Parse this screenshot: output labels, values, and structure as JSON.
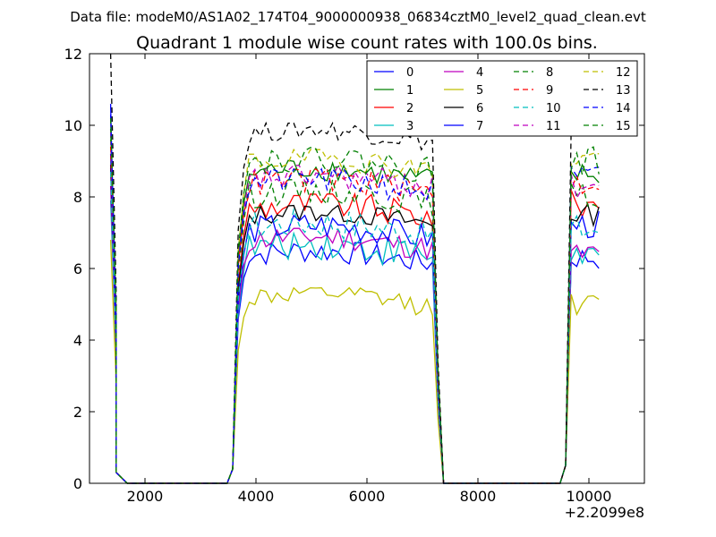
{
  "suptitle": "Data file: modeM0/AS1A02_174T04_9000000938_06834cztM0_level2_quad_clean.evt",
  "chart_data": {
    "type": "line",
    "title": "Quadrant 1 module wise count rates with 100.0s bins.",
    "xlabel": "",
    "ylabel": "",
    "x_offset_label": "+2.2099e8",
    "xlim": [
      1000,
      11000
    ],
    "ylim": [
      0,
      12
    ],
    "xticks": [
      2000,
      4000,
      6000,
      8000,
      10000
    ],
    "yticks": [
      0,
      2,
      4,
      6,
      8,
      10,
      12
    ],
    "grid": false,
    "legend_position": "top-right",
    "legend_columns": 4,
    "segments": [
      {
        "x_start": 1380,
        "x_end": 1580,
        "step": 100
      },
      {
        "x_start": 3580,
        "x_end": 7280,
        "step": 100
      },
      {
        "x_start": 9580,
        "x_end": 10180,
        "step": 100
      }
    ],
    "zero_level_outside_segments": true,
    "series": [
      {
        "name": "0",
        "color": "#0000ff",
        "style": "solid",
        "level": 6.3,
        "amp": 0.35,
        "gap1_start": 10.6,
        "gap3_level": 6.3
      },
      {
        "name": "1",
        "color": "#008000",
        "style": "solid",
        "level": 8.6,
        "amp": 0.35,
        "gap1_start": 9.9,
        "gap3_level": 8.6
      },
      {
        "name": "2",
        "color": "#ff0000",
        "style": "solid",
        "level": 7.6,
        "amp": 0.4,
        "gap1_start": 8.8,
        "gap3_level": 7.8
      },
      {
        "name": "3",
        "color": "#00bfbf",
        "style": "solid",
        "level": 6.5,
        "amp": 0.45,
        "gap1_start": 7.9,
        "gap3_level": 6.4
      },
      {
        "name": "4",
        "color": "#bf00bf",
        "style": "solid",
        "level": 6.7,
        "amp": 0.35,
        "gap1_start": 8.3,
        "gap3_level": 6.4
      },
      {
        "name": "5",
        "color": "#bfbf00",
        "style": "solid",
        "level": 5.1,
        "amp": 0.3,
        "gap1_start": 6.8,
        "gap3_level": 5.0
      },
      {
        "name": "6",
        "color": "#000000",
        "style": "solid",
        "level": 7.4,
        "amp": 0.3,
        "gap1_start": 8.9,
        "gap3_level": 7.5
      },
      {
        "name": "7",
        "color": "#0000ff",
        "style": "solid",
        "level": 7.0,
        "amp": 0.4,
        "gap1_start": 9.2,
        "gap3_level": 7.2
      },
      {
        "name": "8",
        "color": "#008000",
        "style": "dashed",
        "level": 8.0,
        "amp": 0.4,
        "gap1_start": 9.6,
        "gap3_level": 8.0
      },
      {
        "name": "9",
        "color": "#ff0000",
        "style": "dashed",
        "level": 8.3,
        "amp": 0.4,
        "gap1_start": 9.4,
        "gap3_level": 8.4
      },
      {
        "name": "10",
        "color": "#00bfbf",
        "style": "dashed",
        "level": 7.1,
        "amp": 0.45,
        "gap1_start": 8.7,
        "gap3_level": 7.1
      },
      {
        "name": "11",
        "color": "#bf00bf",
        "style": "dashed",
        "level": 8.4,
        "amp": 0.4,
        "gap1_start": 9.8,
        "gap3_level": 8.3
      },
      {
        "name": "12",
        "color": "#bfbf00",
        "style": "dashed",
        "level": 8.9,
        "amp": 0.35,
        "gap1_start": 10.1,
        "gap3_level": 9.1
      },
      {
        "name": "13",
        "color": "#000000",
        "style": "dashed",
        "level": 9.7,
        "amp": 0.3,
        "gap1_start": 12.0,
        "gap3_level": 9.9
      },
      {
        "name": "14",
        "color": "#0000ff",
        "style": "dashed",
        "level": 8.3,
        "amp": 0.4,
        "gap1_start": 10.3,
        "gap3_level": 8.5
      },
      {
        "name": "15",
        "color": "#008000",
        "style": "dashed",
        "level": 8.9,
        "amp": 0.4,
        "gap1_start": 10.2,
        "gap3_level": 9.0
      }
    ]
  }
}
